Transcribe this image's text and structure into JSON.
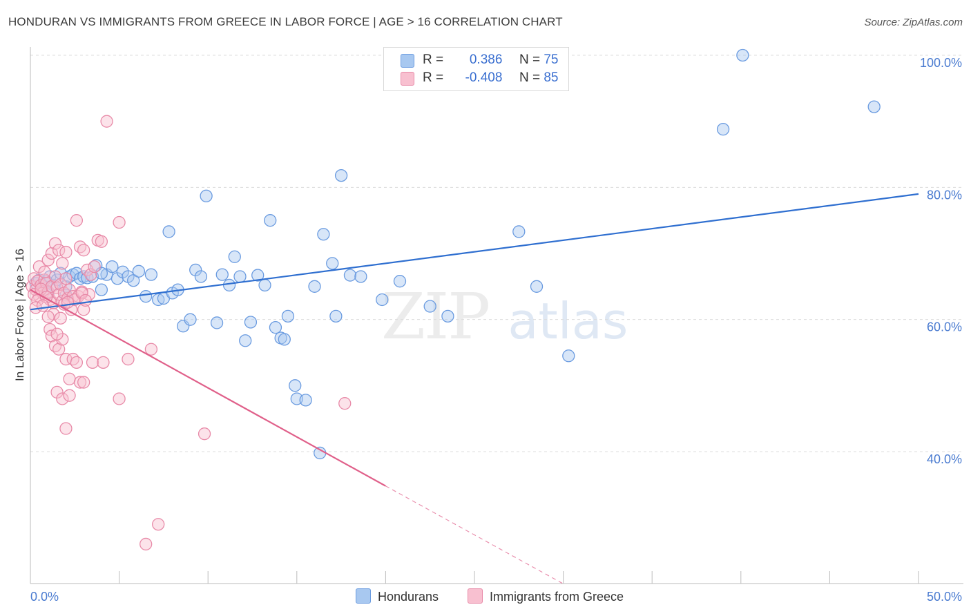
{
  "title": "HONDURAN VS IMMIGRANTS FROM GREECE IN LABOR FORCE | AGE > 16 CORRELATION CHART",
  "source": "Source: ZipAtlas.com",
  "watermark": {
    "zip": "ZIP",
    "atlas": "atlas"
  },
  "legend": {
    "rows": [
      {
        "r_label": "R =",
        "r_value": "0.386",
        "n_label": "N =",
        "n_value": "75",
        "color": "#a8c8f0",
        "border": "#6a9be0"
      },
      {
        "r_label": "R =",
        "r_value": "-0.408",
        "n_label": "N =",
        "n_value": "85",
        "color": "#f8c0d0",
        "border": "#e88aa8"
      }
    ]
  },
  "bottom_legend": [
    {
      "label": "Hondurans",
      "color": "#a8c8f0",
      "border": "#6a9be0"
    },
    {
      "label": "Immigrants from Greece",
      "color": "#f8c0d0",
      "border": "#e88aa8"
    }
  ],
  "chart_data": {
    "type": "scatter",
    "title": "HONDURAN VS IMMIGRANTS FROM GREECE IN LABOR FORCE | AGE > 16 CORRELATION CHART",
    "xlabel": "",
    "ylabel": "In Labor Force | Age > 16",
    "xlim": [
      0,
      50
    ],
    "ylim": [
      20,
      102
    ],
    "x_tick_labels": [
      "0.0%",
      "50.0%"
    ],
    "y_ticks": [
      40,
      60,
      80,
      100
    ],
    "y_tick_labels": [
      "40.0%",
      "60.0%",
      "80.0%",
      "100.0%"
    ],
    "grid": true,
    "legend_position": "top-center",
    "series": [
      {
        "name": "Hondurans",
        "color": "#6a9be0",
        "fill": "#a8c8f0",
        "trend": {
          "x": [
            0,
            50
          ],
          "y": [
            61.5,
            79.0
          ],
          "color": "#2f6fd0"
        },
        "points": [
          [
            0.3,
            65.5
          ],
          [
            0.5,
            66.0
          ],
          [
            0.7,
            65.0
          ],
          [
            0.9,
            65.8
          ],
          [
            1.1,
            66.5
          ],
          [
            1.3,
            65.2
          ],
          [
            1.5,
            66.0
          ],
          [
            1.7,
            67.0
          ],
          [
            2.0,
            65.0
          ],
          [
            2.2,
            66.5
          ],
          [
            2.4,
            66.8
          ],
          [
            2.6,
            67.0
          ],
          [
            2.8,
            66.2
          ],
          [
            3.0,
            66.5
          ],
          [
            3.2,
            66.3
          ],
          [
            3.5,
            66.5
          ],
          [
            3.7,
            68.2
          ],
          [
            4.0,
            64.5
          ],
          [
            4.3,
            66.8
          ],
          [
            4.6,
            68.0
          ],
          [
            4.9,
            66.2
          ],
          [
            5.2,
            67.2
          ],
          [
            5.5,
            66.5
          ],
          [
            5.8,
            65.9
          ],
          [
            6.1,
            67.3
          ],
          [
            6.5,
            63.5
          ],
          [
            6.8,
            66.8
          ],
          [
            7.2,
            63.0
          ],
          [
            7.5,
            63.2
          ],
          [
            7.8,
            73.3
          ],
          [
            8.0,
            64.0
          ],
          [
            8.3,
            64.5
          ],
          [
            8.6,
            59.0
          ],
          [
            9.0,
            60.0
          ],
          [
            9.3,
            67.5
          ],
          [
            9.6,
            66.5
          ],
          [
            9.9,
            78.7
          ],
          [
            10.5,
            59.5
          ],
          [
            10.8,
            66.8
          ],
          [
            11.2,
            65.2
          ],
          [
            11.5,
            69.5
          ],
          [
            11.8,
            66.5
          ],
          [
            12.1,
            56.8
          ],
          [
            12.4,
            59.6
          ],
          [
            12.8,
            66.7
          ],
          [
            13.2,
            65.2
          ],
          [
            13.5,
            75.0
          ],
          [
            13.8,
            58.8
          ],
          [
            14.1,
            57.2
          ],
          [
            14.3,
            57.0
          ],
          [
            14.5,
            60.5
          ],
          [
            14.9,
            50.0
          ],
          [
            15.0,
            48.0
          ],
          [
            15.5,
            47.8
          ],
          [
            16.0,
            65.0
          ],
          [
            16.3,
            39.8
          ],
          [
            16.5,
            72.9
          ],
          [
            17.0,
            68.5
          ],
          [
            17.2,
            60.5
          ],
          [
            17.5,
            81.8
          ],
          [
            18.0,
            66.7
          ],
          [
            18.6,
            66.5
          ],
          [
            19.8,
            63.0
          ],
          [
            20.8,
            65.8
          ],
          [
            22.5,
            62.0
          ],
          [
            23.5,
            60.5
          ],
          [
            27.5,
            73.3
          ],
          [
            28.5,
            65.0
          ],
          [
            30.3,
            54.5
          ],
          [
            39.0,
            88.8
          ],
          [
            40.1,
            100.0
          ],
          [
            47.5,
            92.2
          ],
          [
            1.0,
            64.0
          ],
          [
            2.0,
            63.7
          ],
          [
            4.0,
            67.0
          ]
        ]
      },
      {
        "name": "Immigrants from Greece",
        "color": "#e88aa8",
        "fill": "#f8c0d0",
        "trend": {
          "x": [
            0,
            20
          ],
          "y": [
            64.5,
            34.8
          ],
          "color": "#e0608a"
        },
        "trend_extension": {
          "x": [
            20,
            30
          ],
          "y": [
            34.8,
            20.0
          ]
        },
        "points": [
          [
            0.1,
            65.0
          ],
          [
            0.2,
            66.2
          ],
          [
            0.3,
            64.5
          ],
          [
            0.4,
            65.8
          ],
          [
            0.5,
            63.5
          ],
          [
            0.6,
            65.2
          ],
          [
            0.7,
            64.0
          ],
          [
            0.8,
            66.0
          ],
          [
            0.9,
            65.5
          ],
          [
            1.0,
            64.2
          ],
          [
            1.1,
            63.0
          ],
          [
            1.2,
            65.0
          ],
          [
            1.3,
            62.5
          ],
          [
            1.4,
            66.5
          ],
          [
            1.5,
            64.8
          ],
          [
            1.6,
            63.8
          ],
          [
            1.7,
            65.3
          ],
          [
            1.8,
            62.8
          ],
          [
            1.9,
            64.0
          ],
          [
            2.0,
            66.2
          ],
          [
            2.1,
            63.2
          ],
          [
            2.2,
            64.5
          ],
          [
            2.3,
            61.5
          ],
          [
            2.4,
            63.5
          ],
          [
            0.5,
            68.0
          ],
          [
            0.8,
            67.2
          ],
          [
            1.0,
            69.0
          ],
          [
            1.2,
            70.0
          ],
          [
            1.4,
            71.5
          ],
          [
            1.6,
            70.5
          ],
          [
            1.8,
            68.5
          ],
          [
            2.0,
            70.2
          ],
          [
            2.6,
            75.0
          ],
          [
            2.8,
            71.0
          ],
          [
            3.0,
            70.5
          ],
          [
            3.2,
            67.5
          ],
          [
            3.4,
            66.8
          ],
          [
            3.6,
            68.0
          ],
          [
            3.8,
            72.0
          ],
          [
            4.0,
            71.8
          ],
          [
            4.3,
            90.0
          ],
          [
            5.0,
            74.7
          ],
          [
            1.1,
            58.5
          ],
          [
            1.2,
            57.5
          ],
          [
            1.4,
            56.0
          ],
          [
            1.6,
            55.5
          ],
          [
            1.8,
            57.0
          ],
          [
            2.0,
            54.0
          ],
          [
            2.2,
            51.0
          ],
          [
            2.4,
            54.0
          ],
          [
            2.6,
            53.5
          ],
          [
            2.8,
            50.5
          ],
          [
            1.5,
            49.0
          ],
          [
            1.8,
            48.0
          ],
          [
            2.2,
            48.5
          ],
          [
            2.0,
            43.5
          ],
          [
            3.0,
            50.5
          ],
          [
            3.5,
            53.5
          ],
          [
            4.1,
            53.5
          ],
          [
            5.0,
            48.0
          ],
          [
            5.5,
            54.0
          ],
          [
            6.8,
            55.5
          ],
          [
            7.2,
            29.0
          ],
          [
            6.5,
            26.0
          ],
          [
            9.8,
            42.7
          ],
          [
            17.7,
            47.3
          ],
          [
            2.7,
            63.5
          ],
          [
            3.0,
            61.5
          ],
          [
            2.5,
            63.0
          ],
          [
            3.3,
            63.8
          ],
          [
            2.9,
            64.2
          ],
          [
            0.2,
            63.8
          ],
          [
            0.4,
            62.9
          ],
          [
            0.6,
            64.6
          ],
          [
            0.9,
            63.4
          ],
          [
            1.3,
            60.8
          ],
          [
            0.3,
            61.8
          ],
          [
            1.7,
            60.2
          ],
          [
            2.9,
            64.0
          ],
          [
            3.1,
            62.9
          ],
          [
            1.9,
            62.3
          ],
          [
            0.7,
            62.1
          ],
          [
            2.1,
            62.6
          ],
          [
            1.0,
            60.4
          ],
          [
            1.5,
            57.8
          ]
        ]
      }
    ]
  }
}
